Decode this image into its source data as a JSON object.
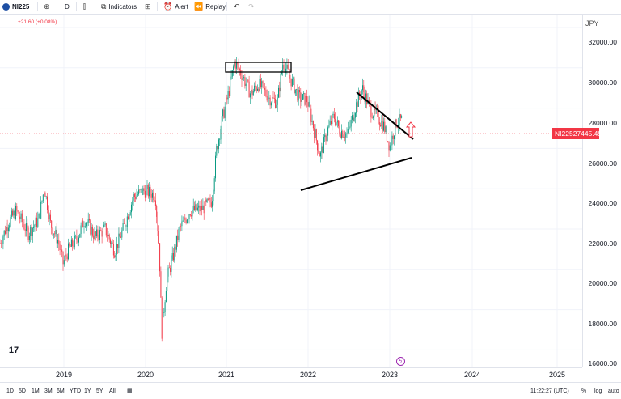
{
  "toolbar": {
    "symbol": "NI225",
    "interval": "D",
    "indicators_label": "Indicators",
    "alert_label": "Alert",
    "replay_label": "Replay"
  },
  "legend": {
    "change": "+21.60 (+0.08%)"
  },
  "price_scale": {
    "currency": "JPY",
    "ticks": [
      "32000.00",
      "30000.00",
      "28000.00",
      "26000.00",
      "24000.00",
      "22000.00",
      "20000.00",
      "18000.00",
      "16000.00"
    ],
    "last_price": {
      "symbol": "NI225",
      "value": "27445.49"
    }
  },
  "time_axis": {
    "years": [
      "2019",
      "2020",
      "2021",
      "2022",
      "2023",
      "2024",
      "2025"
    ]
  },
  "bottom_bar": {
    "ranges": [
      "1D",
      "5D",
      "1M",
      "3M",
      "6M",
      "YTD",
      "1Y",
      "5Y",
      "All"
    ],
    "clock": "11:22:27 (UTC)",
    "percent": "%",
    "log": "log",
    "auto": "auto"
  },
  "colors": {
    "up": "#089981",
    "down": "#f23645",
    "accent": "#2962ff"
  },
  "icons": [
    "plus-circle-icon",
    "indicators-icon",
    "layout-icon",
    "alert-clock-icon",
    "replay-icon",
    "undo-icon",
    "redo-icon",
    "calendar-range-icon",
    "tradingview-logo-icon"
  ]
}
